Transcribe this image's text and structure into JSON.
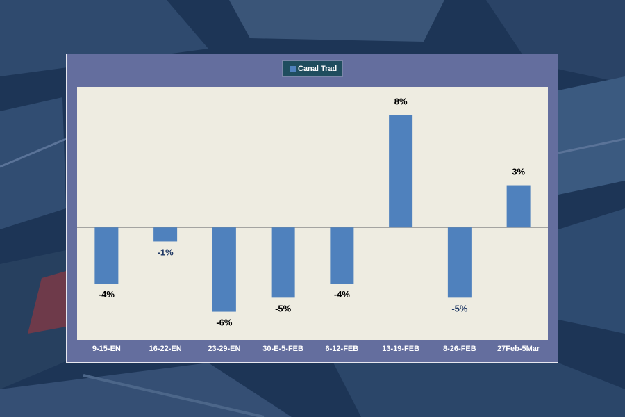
{
  "legend": {
    "label": "Canal Trad",
    "swatch_color": "#4f81bd"
  },
  "colors": {
    "bar": "#4f81bd",
    "plot_background": "#eeece1",
    "panel_background": "#646e9e",
    "label_dark": "#000000",
    "label_blue": "#1f3864"
  },
  "chart_data": {
    "type": "bar",
    "categories": [
      "9-15-EN",
      "16-22-EN",
      "23-29-EN",
      "30-E-5-FEB",
      "6-12-FEB",
      "13-19-FEB",
      "8-26-FEB",
      "27Feb-5Mar"
    ],
    "series": [
      {
        "values": [
          -4,
          -1,
          -6,
          -5,
          -4,
          8,
          -5,
          3
        ]
      }
    ],
    "data_labels": [
      "-4%",
      "-1%",
      "-6%",
      "-5%",
      "-4%",
      "8%",
      "-5%",
      "3%"
    ],
    "ylim": [
      -8,
      10
    ],
    "gridlines": false,
    "legend_position": "top-center"
  }
}
